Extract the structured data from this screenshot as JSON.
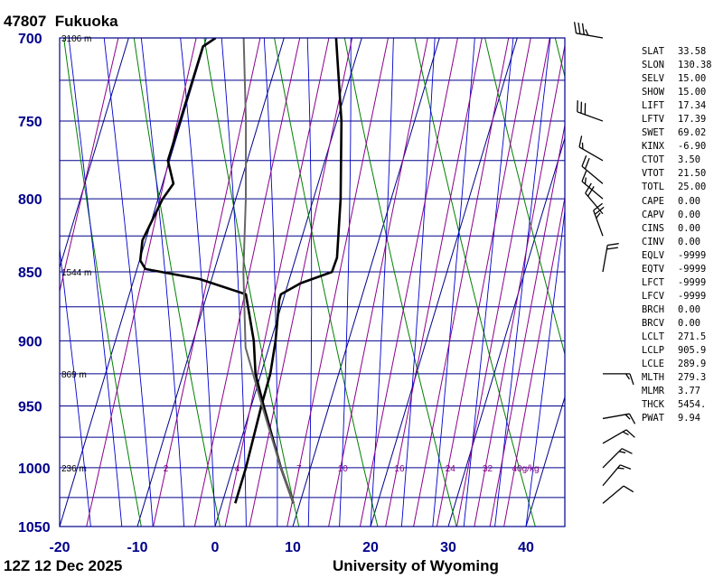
{
  "header": {
    "station_id": "47807",
    "station_name": "Fukuoka"
  },
  "footer": {
    "time": "12Z 12 Dec 2025",
    "source": "University of Wyoming"
  },
  "colors": {
    "frame": "#00008b",
    "isotherm": "#00008b",
    "isobar": "#00008b",
    "dry_adiabat": "#008000",
    "moist_adiabat": "#0000cd",
    "mixing_ratio": "#8b008b",
    "sounding": "#000000",
    "parcel": "#666666",
    "axis_label": "#00008b"
  },
  "stats": [
    {
      "key": "SLAT",
      "value": "33.58"
    },
    {
      "key": "SLON",
      "value": "130.38"
    },
    {
      "key": "SELV",
      "value": "15.00"
    },
    {
      "key": "SHOW",
      "value": "15.00"
    },
    {
      "key": "LIFT",
      "value": "17.34"
    },
    {
      "key": "LFTV",
      "value": "17.39"
    },
    {
      "key": "SWET",
      "value": "69.02"
    },
    {
      "key": "KINX",
      "value": "-6.90"
    },
    {
      "key": "CTOT",
      "value": "3.50"
    },
    {
      "key": "VTOT",
      "value": "21.50"
    },
    {
      "key": "TOTL",
      "value": "25.00"
    },
    {
      "key": "CAPE",
      "value": "0.00"
    },
    {
      "key": "CAPV",
      "value": "0.00"
    },
    {
      "key": "CINS",
      "value": "0.00"
    },
    {
      "key": "CINV",
      "value": "0.00"
    },
    {
      "key": "EQLV",
      "value": "-9999"
    },
    {
      "key": "EQTV",
      "value": "-9999"
    },
    {
      "key": "LFCT",
      "value": "-9999"
    },
    {
      "key": "LFCV",
      "value": "-9999"
    },
    {
      "key": "BRCH",
      "value": "0.00"
    },
    {
      "key": "BRCV",
      "value": "0.00"
    },
    {
      "key": "LCLT",
      "value": "271.5"
    },
    {
      "key": "LCLP",
      "value": "905.9"
    },
    {
      "key": "LCLE",
      "value": "289.9"
    },
    {
      "key": "MLTH",
      "value": "279.3"
    },
    {
      "key": "MLMR",
      "value": "3.77"
    },
    {
      "key": "THCK",
      "value": "5454."
    },
    {
      "key": "PWAT",
      "value": "9.94"
    }
  ],
  "chart_data": {
    "type": "line",
    "xlabel": "",
    "ylabel": "",
    "xlim": [
      -20,
      45
    ],
    "ylim": [
      1050,
      700
    ],
    "y_scale": "log-pressure",
    "x_ticks": [
      -20,
      -10,
      0,
      10,
      20,
      30,
      40
    ],
    "x_tick_labels": [
      "-20",
      "-10",
      "0",
      "10",
      "20",
      "30",
      "40"
    ],
    "y_ticks": [
      700,
      750,
      800,
      850,
      900,
      950,
      1000,
      1050
    ],
    "y_tick_labels": [
      "700",
      "750",
      "800",
      "850",
      "900",
      "950",
      "1000",
      "1050"
    ],
    "height_labels": [
      {
        "pressure": 700,
        "text": "3106 m"
      },
      {
        "pressure": 850,
        "text": "1544 m"
      },
      {
        "pressure": 925,
        "text": "869 m"
      },
      {
        "pressure": 1000,
        "text": "236 m"
      }
    ],
    "mixing_ratio_labels": [
      "2",
      "4",
      "7",
      "10",
      "16",
      "24",
      "32",
      "40g/kg"
    ],
    "series": [
      {
        "role": "temperature",
        "color": "#000000",
        "points": [
          [
            700,
            -3.3
          ],
          [
            750,
            0.6
          ],
          [
            800,
            3.5
          ],
          [
            840,
            5.3
          ],
          [
            850,
            5.2
          ],
          [
            858,
            1.6
          ],
          [
            866,
            -0.5
          ],
          [
            870,
            -0.5
          ],
          [
            900,
            0.6
          ],
          [
            925,
            1.2
          ],
          [
            950,
            1.3
          ],
          [
            1000,
            1.7
          ],
          [
            1030,
            1.7
          ]
        ]
      },
      {
        "role": "dewpoint",
        "color": "#000000",
        "points": [
          [
            700,
            -18.8
          ],
          [
            705,
            -20.1
          ],
          [
            775,
            -20.2
          ],
          [
            790,
            -18.6
          ],
          [
            800,
            -19.4
          ],
          [
            828,
            -20.4
          ],
          [
            842,
            -19.9
          ],
          [
            848,
            -18.9
          ],
          [
            855,
            -11.6
          ],
          [
            866,
            -5.0
          ],
          [
            900,
            -2.2
          ],
          [
            925,
            -0.7
          ],
          [
            950,
            1.6
          ],
          [
            1000,
            6.2
          ],
          [
            1030,
            9.2
          ]
        ]
      },
      {
        "role": "parcel",
        "color": "#666666",
        "points": [
          [
            700,
            -15.2
          ],
          [
            750,
            -11.7
          ],
          [
            800,
            -8.7
          ],
          [
            850,
            -6.2
          ],
          [
            905,
            -3.0
          ],
          [
            950,
            1.4
          ],
          [
            1000,
            6.2
          ],
          [
            1030,
            9.2
          ]
        ]
      }
    ],
    "wind_barbs": [
      {
        "pressure": 700,
        "direction": 280,
        "speed_kt": 35
      },
      {
        "pressure": 750,
        "direction": 290,
        "speed_kt": 30
      },
      {
        "pressure": 775,
        "direction": 300,
        "speed_kt": 15
      },
      {
        "pressure": 790,
        "direction": 310,
        "speed_kt": 20
      },
      {
        "pressure": 800,
        "direction": 310,
        "speed_kt": 15
      },
      {
        "pressure": 810,
        "direction": 320,
        "speed_kt": 20
      },
      {
        "pressure": 825,
        "direction": 340,
        "speed_kt": 25
      },
      {
        "pressure": 850,
        "direction": 10,
        "speed_kt": 20
      },
      {
        "pressure": 925,
        "direction": 90,
        "speed_kt": 15
      },
      {
        "pressure": 960,
        "direction": 80,
        "speed_kt": 15
      },
      {
        "pressure": 980,
        "direction": 60,
        "speed_kt": 15
      },
      {
        "pressure": 1000,
        "direction": 45,
        "speed_kt": 15
      },
      {
        "pressure": 1015,
        "direction": 40,
        "speed_kt": 15
      },
      {
        "pressure": 1030,
        "direction": 50,
        "speed_kt": 10
      }
    ],
    "grid": true
  }
}
